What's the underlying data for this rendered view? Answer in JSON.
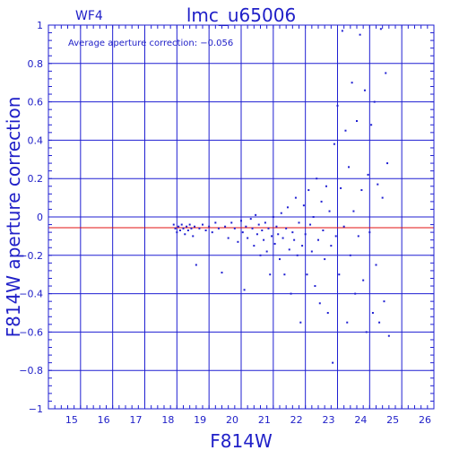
{
  "colors": {
    "axis": "#1f1fd2",
    "grid": "#1f1fd2",
    "points": "#1f1fd2",
    "average_line": "#e01010",
    "text": "#2020c8",
    "background": "#ffffff"
  },
  "chart_data": {
    "type": "scatter",
    "title": "lmc_u65006",
    "corner_label": "WF4",
    "annotation": "Average aperture correction: −0.056",
    "xlabel": "F814W",
    "ylabel": "F814W aperture correction",
    "xlim": [
      14,
      26
    ],
    "ylim": [
      -1,
      1
    ],
    "x_ticks": [
      15,
      16,
      17,
      18,
      19,
      20,
      21,
      22,
      23,
      24,
      25,
      26
    ],
    "y_ticks": [
      -1,
      -0.8,
      -0.6,
      -0.4,
      -0.2,
      0,
      0.2,
      0.4,
      0.6,
      0.8,
      1
    ],
    "x_tick_labels": [
      "15",
      "16",
      "17",
      "18",
      "19",
      "20",
      "21",
      "22",
      "23",
      "24",
      "25",
      "26"
    ],
    "y_tick_labels": [
      "−1",
      "−0.8",
      "−0.6",
      "−0.4",
      "−0.2",
      "0",
      "0.2",
      "0.4",
      "0.6",
      "0.8",
      "1"
    ],
    "grid": true,
    "horizontal_line": {
      "y": -0.056
    },
    "points": [
      [
        17.9,
        -0.04
      ],
      [
        17.95,
        -0.06
      ],
      [
        18.0,
        -0.08
      ],
      [
        18.05,
        -0.05
      ],
      [
        18.1,
        -0.07
      ],
      [
        18.15,
        -0.04
      ],
      [
        18.2,
        -0.06
      ],
      [
        18.25,
        -0.09
      ],
      [
        18.3,
        -0.05
      ],
      [
        18.35,
        -0.07
      ],
      [
        18.4,
        -0.04
      ],
      [
        18.45,
        -0.06
      ],
      [
        18.5,
        -0.1
      ],
      [
        18.55,
        -0.05
      ],
      [
        18.6,
        -0.25
      ],
      [
        18.7,
        -0.06
      ],
      [
        18.8,
        -0.04
      ],
      [
        18.9,
        -0.07
      ],
      [
        19.0,
        -0.05
      ],
      [
        19.1,
        -0.08
      ],
      [
        19.2,
        -0.03
      ],
      [
        19.3,
        -0.06
      ],
      [
        19.4,
        -0.29
      ],
      [
        19.5,
        -0.05
      ],
      [
        19.6,
        -0.11
      ],
      [
        19.7,
        -0.03
      ],
      [
        19.8,
        -0.06
      ],
      [
        19.9,
        -0.13
      ],
      [
        20.0,
        -0.02
      ],
      [
        20.05,
        -0.08
      ],
      [
        20.1,
        -0.38
      ],
      [
        20.15,
        -0.05
      ],
      [
        20.2,
        -0.11
      ],
      [
        20.3,
        -0.01
      ],
      [
        20.35,
        -0.06
      ],
      [
        20.4,
        -0.15
      ],
      [
        20.45,
        0.01
      ],
      [
        20.5,
        -0.09
      ],
      [
        20.55,
        -0.04
      ],
      [
        20.6,
        -0.2
      ],
      [
        20.65,
        -0.07
      ],
      [
        20.7,
        -0.12
      ],
      [
        20.75,
        -0.03
      ],
      [
        20.8,
        -0.18
      ],
      [
        20.85,
        -0.06
      ],
      [
        20.9,
        -0.3
      ],
      [
        20.95,
        -0.1
      ],
      [
        21.0,
        0.0
      ],
      [
        21.05,
        -0.14
      ],
      [
        21.1,
        -0.05
      ],
      [
        21.15,
        -0.09
      ],
      [
        21.2,
        -0.22
      ],
      [
        21.25,
        0.02
      ],
      [
        21.3,
        -0.11
      ],
      [
        21.35,
        -0.3
      ],
      [
        21.4,
        -0.06
      ],
      [
        21.45,
        0.05
      ],
      [
        21.5,
        -0.17
      ],
      [
        21.55,
        -0.4
      ],
      [
        21.6,
        -0.08
      ],
      [
        21.65,
        -0.12
      ],
      [
        21.7,
        0.1
      ],
      [
        21.75,
        -0.2
      ],
      [
        21.8,
        -0.03
      ],
      [
        21.85,
        -0.55
      ],
      [
        21.9,
        -0.15
      ],
      [
        21.95,
        0.06
      ],
      [
        22.0,
        -0.09
      ],
      [
        22.05,
        -0.3
      ],
      [
        22.1,
        0.14
      ],
      [
        22.15,
        -0.04
      ],
      [
        22.2,
        -0.18
      ],
      [
        22.25,
        0.0
      ],
      [
        22.3,
        -0.36
      ],
      [
        22.35,
        0.2
      ],
      [
        22.4,
        -0.12
      ],
      [
        22.45,
        -0.45
      ],
      [
        22.5,
        0.08
      ],
      [
        22.55,
        -0.07
      ],
      [
        22.6,
        -0.22
      ],
      [
        22.65,
        0.16
      ],
      [
        22.7,
        -0.5
      ],
      [
        22.75,
        0.03
      ],
      [
        22.8,
        -0.15
      ],
      [
        22.85,
        -0.76
      ],
      [
        22.9,
        0.38
      ],
      [
        22.95,
        -0.1
      ],
      [
        23.0,
        0.58
      ],
      [
        23.05,
        -0.3
      ],
      [
        23.1,
        0.15
      ],
      [
        23.15,
        0.97
      ],
      [
        23.2,
        -0.05
      ],
      [
        23.25,
        0.45
      ],
      [
        23.3,
        -0.55
      ],
      [
        23.35,
        0.26
      ],
      [
        23.4,
        -0.2
      ],
      [
        23.45,
        0.7
      ],
      [
        23.5,
        0.03
      ],
      [
        23.55,
        -0.4
      ],
      [
        23.6,
        0.5
      ],
      [
        23.65,
        -0.1
      ],
      [
        23.7,
        0.95
      ],
      [
        23.75,
        0.14
      ],
      [
        23.8,
        -0.33
      ],
      [
        23.85,
        0.66
      ],
      [
        23.9,
        -0.6
      ],
      [
        23.95,
        0.22
      ],
      [
        24.0,
        -0.08
      ],
      [
        24.05,
        0.48
      ],
      [
        24.1,
        -0.5
      ],
      [
        24.15,
        0.6
      ],
      [
        24.2,
        -0.25
      ],
      [
        24.25,
        0.17
      ],
      [
        24.3,
        -0.55
      ],
      [
        24.35,
        0.98
      ],
      [
        24.4,
        0.1
      ],
      [
        24.45,
        -0.44
      ],
      [
        24.5,
        0.75
      ],
      [
        24.55,
        0.28
      ],
      [
        24.6,
        -0.62
      ]
    ]
  }
}
